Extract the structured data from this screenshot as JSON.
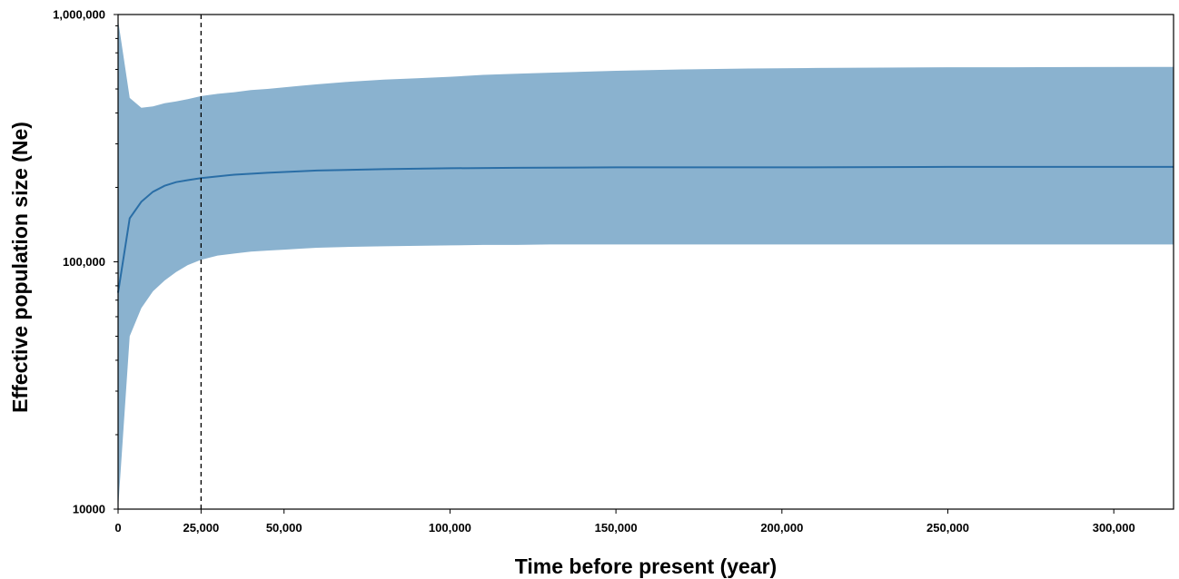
{
  "chart_data": {
    "type": "area",
    "xlabel": "Time before present (year)",
    "ylabel": "Effective population size (Ne)",
    "y_scale": "log",
    "xlim": [
      0,
      318000
    ],
    "ylim": [
      10000,
      1000000
    ],
    "x_ticks": [
      {
        "value": 0,
        "label": "0"
      },
      {
        "value": 25000,
        "label": "25,000"
      },
      {
        "value": 50000,
        "label": "50,000"
      },
      {
        "value": 100000,
        "label": "100,000"
      },
      {
        "value": 150000,
        "label": "150,000"
      },
      {
        "value": 200000,
        "label": "200,000"
      },
      {
        "value": 250000,
        "label": "250,000"
      },
      {
        "value": 300000,
        "label": "300,000"
      }
    ],
    "y_ticks": [
      {
        "value": 10000,
        "label": "10000"
      },
      {
        "value": 100000,
        "label": "100,000"
      },
      {
        "value": 1000000,
        "label": "1,000,000"
      }
    ],
    "reference_line": {
      "x": 25000,
      "style": "dashed"
    },
    "grid": false,
    "series": [
      {
        "role": "median",
        "color": "#2a6ea6",
        "x": [
          0,
          3500,
          7000,
          10500,
          14000,
          17500,
          21000,
          25000,
          35000,
          45000,
          60000,
          80000,
          100000,
          120000,
          150000,
          200000,
          250000,
          318000
        ],
        "y": [
          75000,
          150000,
          175000,
          192000,
          203000,
          210000,
          214000,
          218000,
          225000,
          229000,
          234000,
          237000,
          239000,
          240000,
          241000,
          241000,
          242000,
          242000
        ]
      },
      {
        "role": "interval",
        "color": "#8ab2cf",
        "x": [
          0,
          3500,
          7000,
          10500,
          14000,
          17500,
          21000,
          25000,
          30000,
          35000,
          40000,
          45000,
          50000,
          55000,
          60000,
          70000,
          80000,
          90000,
          100000,
          110000,
          120000,
          130000,
          150000,
          170000,
          190000,
          210000,
          230000,
          250000,
          270000,
          290000,
          318000
        ],
        "upper": [
          950000,
          460000,
          420000,
          425000,
          438000,
          445000,
          455000,
          468000,
          478000,
          485000,
          495000,
          500000,
          508000,
          515000,
          522000,
          535000,
          545000,
          552000,
          560000,
          570000,
          576000,
          582000,
          592000,
          600000,
          605000,
          608000,
          610000,
          612000,
          612000,
          613000,
          614000
        ],
        "lower": [
          10000,
          50000,
          65000,
          76000,
          84000,
          91000,
          97000,
          102000,
          106000,
          108000,
          110000,
          111000,
          112000,
          113000,
          114000,
          115000,
          115500,
          116000,
          116500,
          117000,
          117000,
          117500,
          117500,
          117500,
          117500,
          117500,
          117500,
          117500,
          117500,
          117500,
          117500
        ]
      }
    ]
  }
}
